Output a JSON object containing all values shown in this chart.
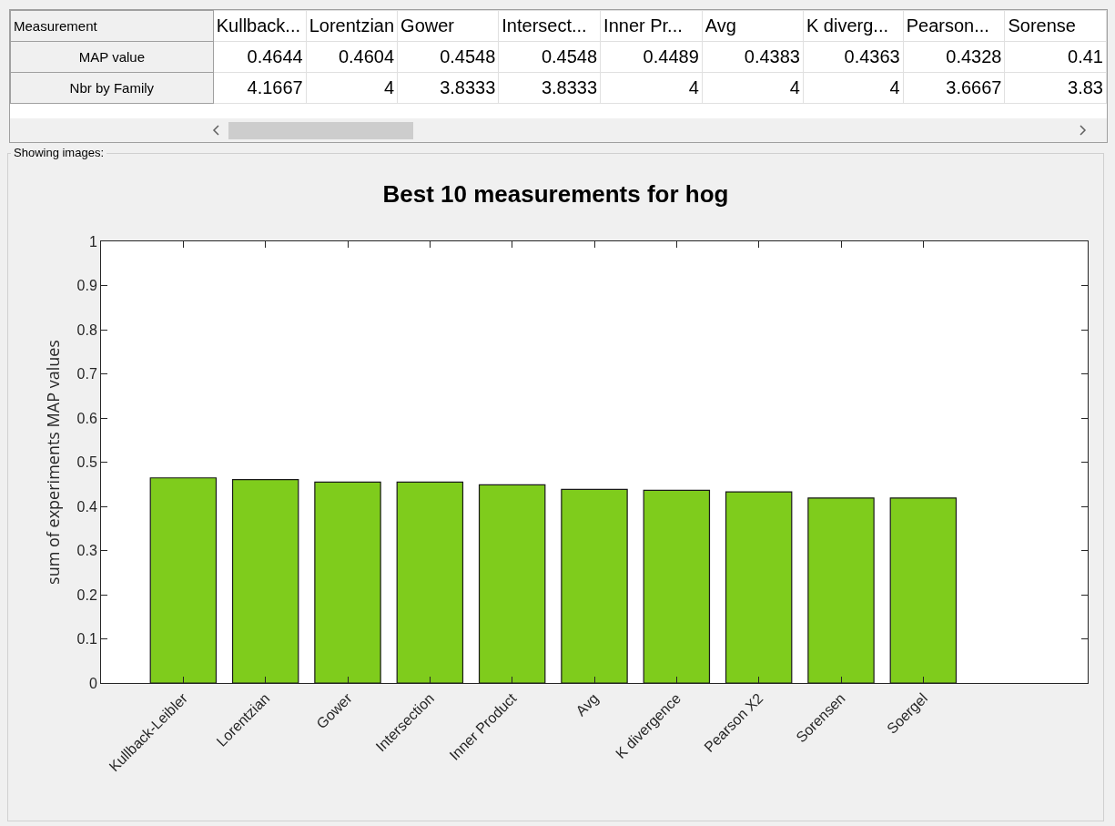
{
  "chart_data": [
    {
      "type": "other",
      "annotations": [
        "Measurement",
        "Kullback...",
        "Lorentzian",
        "Gower",
        "Intersect...",
        "Inner Pr...",
        "Avg",
        "K diverg...",
        "Pearson...",
        "Sorense",
        "MAP value",
        "0.4644",
        "0.4604",
        "0.4548",
        "0.4548",
        "0.4489",
        "0.4383",
        "0.4363",
        "0.4328",
        "0.41",
        "Nbr by Family",
        "4.1667",
        "4",
        "3.8333",
        "3.8333",
        "4",
        "4",
        "4",
        "3.6667",
        "3.83"
      ]
    },
    {
      "type": "bar",
      "title": "Best 10 measurements for hog",
      "ylabel": "sum of experiments MAP values",
      "annotations": [
        "Showing images:"
      ],
      "categories": [
        "Kullback-Leibler",
        "Lorentzian",
        "Gower",
        "Intersection",
        "Inner Product",
        "Avg",
        "K divergence",
        "Pearson X2",
        "Sorensen",
        "Soergel"
      ],
      "values": [
        0.4644,
        0.4604,
        0.4548,
        0.4548,
        0.4489,
        0.4383,
        0.4363,
        0.4328,
        0.419,
        0.419
      ],
      "color": "#7fcc1c",
      "ylim": [
        0,
        1
      ],
      "yticks": [
        0,
        0.1,
        0.2,
        0.3,
        0.4,
        0.5,
        0.6,
        0.7,
        0.8,
        0.9,
        1
      ],
      "grid": false
    }
  ]
}
